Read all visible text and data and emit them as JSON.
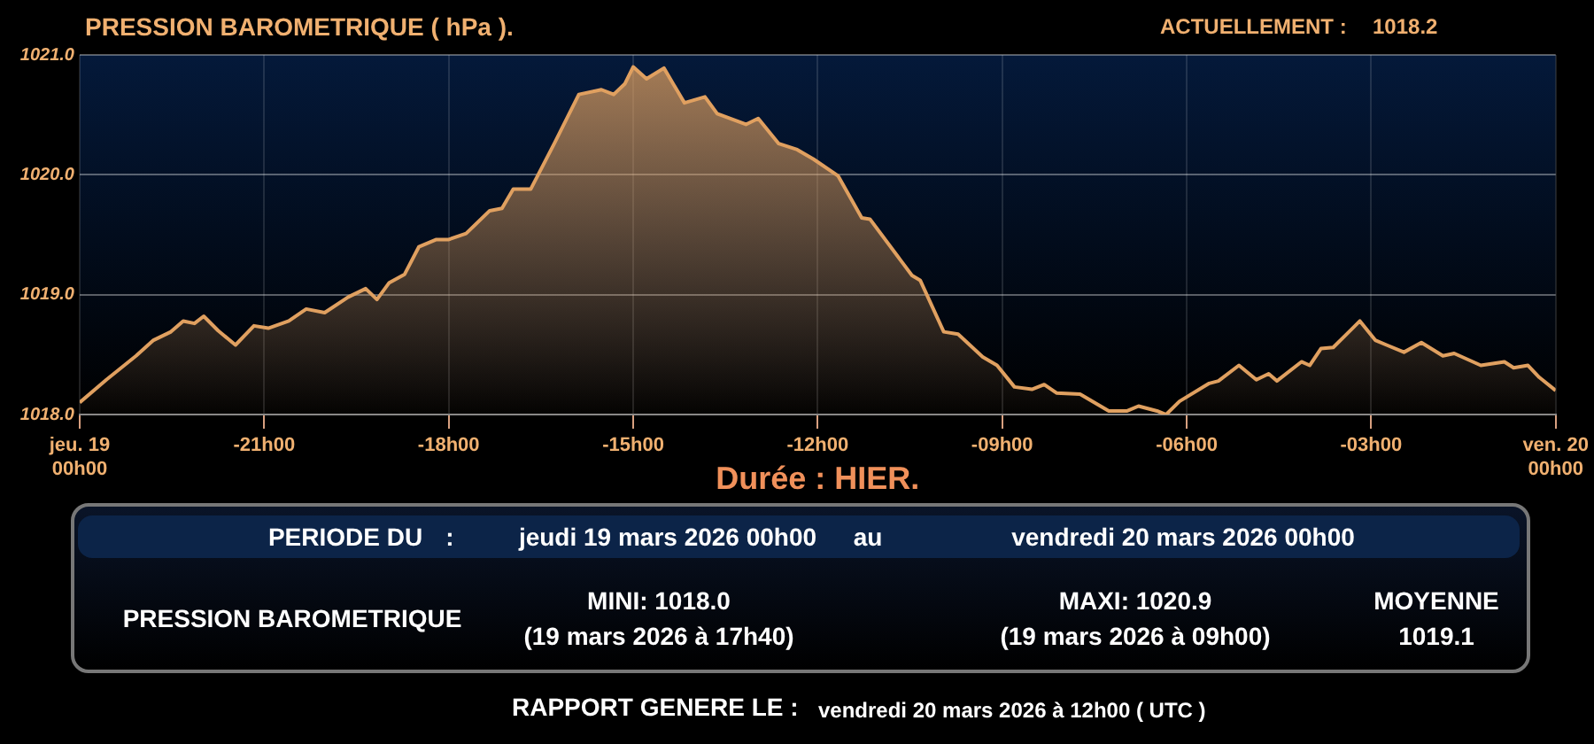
{
  "chart_data": {
    "type": "area",
    "title": "PRESSION BAROMETRIQUE ( hPa ).",
    "xlabel": "Durée : HIER.",
    "annotations": [
      "ACTUELLEMENT :",
      "1018.2",
      "PERIODE DU",
      ":",
      "jeudi 19 mars 2026 00h00",
      "au",
      "vendredi 20 mars 2026 00h00",
      "PRESSION BAROMETRIQUE",
      "MINI:  1018.0",
      "(19 mars 2026 à 17h40)",
      "MAXI:  1020.9",
      "(19 mars 2026 à 09h00)",
      "MOYENNE",
      "1019.1",
      "RAPPORT GENERE LE :",
      "vendredi 20 mars 2026 à 12h00 ( UTC )"
    ],
    "xlim": [
      "2026-03-19T00:00",
      "2026-03-20T00:00"
    ],
    "xticks": [
      {
        "value": "2026-03-19T00:00",
        "label": "jeu. 19\n00h00"
      },
      {
        "value": "2026-03-19T03:00",
        "label": "-21h00"
      },
      {
        "value": "2026-03-19T06:00",
        "label": "-18h00"
      },
      {
        "value": "2026-03-19T09:00",
        "label": "-15h00"
      },
      {
        "value": "2026-03-19T12:00",
        "label": "-12h00"
      },
      {
        "value": "2026-03-19T15:00",
        "label": "-09h00"
      },
      {
        "value": "2026-03-19T18:00",
        "label": "-06h00"
      },
      {
        "value": "2026-03-19T21:00",
        "label": "-03h00"
      },
      {
        "value": "2026-03-20T00:00",
        "label": "ven. 20\n00h00"
      }
    ],
    "ylim": [
      1018,
      1021
    ],
    "yticks": [
      {
        "value": 1018,
        "label": "1018.0"
      },
      {
        "value": 1019,
        "label": "1019.0"
      },
      {
        "value": 1020,
        "label": "1020.0"
      },
      {
        "value": 1021,
        "label": "1021.0"
      }
    ],
    "grid": true,
    "marker": "none",
    "line_style": "solid",
    "series": [
      {
        "color": "#e0a060",
        "x": [
          "2026-03-19T00:00",
          "2026-03-19T00:26",
          "2026-03-19T00:55",
          "2026-03-19T01:12",
          "2026-03-19T01:29",
          "2026-03-19T01:41",
          "2026-03-19T01:52",
          "2026-03-19T02:01",
          "2026-03-19T02:15",
          "2026-03-19T02:32",
          "2026-03-19T02:50",
          "2026-03-19T03:04",
          "2026-03-19T03:24",
          "2026-03-19T03:41",
          "2026-03-19T03:59",
          "2026-03-19T04:22",
          "2026-03-19T04:39",
          "2026-03-19T04:50",
          "2026-03-19T05:02",
          "2026-03-19T05:17",
          "2026-03-19T05:31",
          "2026-03-19T05:48",
          "2026-03-19T06:00",
          "2026-03-19T06:17",
          "2026-03-19T06:40",
          "2026-03-19T06:52",
          "2026-03-19T07:03",
          "2026-03-19T07:20",
          "2026-03-19T07:43",
          "2026-03-19T08:07",
          "2026-03-19T08:29",
          "2026-03-19T08:41",
          "2026-03-19T08:52",
          "2026-03-19T09:00",
          "2026-03-19T09:13",
          "2026-03-19T09:30",
          "2026-03-19T09:50",
          "2026-03-19T10:10",
          "2026-03-19T10:22",
          "2026-03-19T10:50",
          "2026-03-19T11:02",
          "2026-03-19T11:22",
          "2026-03-19T11:40",
          "2026-03-19T11:56",
          "2026-03-19T12:20",
          "2026-03-19T12:43",
          "2026-03-19T12:51",
          "2026-03-19T13:32",
          "2026-03-19T13:40",
          "2026-03-19T14:03",
          "2026-03-19T14:17",
          "2026-03-19T14:41",
          "2026-03-19T14:55",
          "2026-03-19T15:12",
          "2026-03-19T15:29",
          "2026-03-19T15:41",
          "2026-03-19T15:53",
          "2026-03-19T16:16",
          "2026-03-19T16:44",
          "2026-03-19T17:02",
          "2026-03-19T17:13",
          "2026-03-19T17:31",
          "2026-03-19T17:40",
          "2026-03-19T17:53",
          "2026-03-19T18:22",
          "2026-03-19T18:31",
          "2026-03-19T18:51",
          "2026-03-19T19:08",
          "2026-03-19T19:20",
          "2026-03-19T19:28",
          "2026-03-19T19:52",
          "2026-03-19T20:00",
          "2026-03-19T20:11",
          "2026-03-19T20:23",
          "2026-03-19T20:49",
          "2026-03-19T21:04",
          "2026-03-19T21:15",
          "2026-03-19T21:32",
          "2026-03-19T21:49",
          "2026-03-19T22:10",
          "2026-03-19T22:21",
          "2026-03-19T22:47",
          "2026-03-19T23:10",
          "2026-03-19T23:19",
          "2026-03-19T23:33",
          "2026-03-19T23:44",
          "2026-03-20T00:00"
        ],
        "values": [
          1018.1,
          1018.29,
          1018.49,
          1018.62,
          1018.69,
          1018.78,
          1018.76,
          1018.82,
          1018.7,
          1018.58,
          1018.74,
          1018.72,
          1018.78,
          1018.88,
          1018.85,
          1018.98,
          1019.05,
          1018.96,
          1019.1,
          1019.17,
          1019.4,
          1019.46,
          1019.46,
          1019.51,
          1019.7,
          1019.72,
          1019.88,
          1019.88,
          1020.26,
          1020.67,
          1020.71,
          1020.67,
          1020.76,
          1020.9,
          1020.8,
          1020.89,
          1020.6,
          1020.65,
          1020.51,
          1020.42,
          1020.47,
          1020.26,
          1020.21,
          1020.13,
          1019.99,
          1019.64,
          1019.63,
          1019.16,
          1019.12,
          1018.69,
          1018.67,
          1018.48,
          1018.41,
          1018.23,
          1018.21,
          1018.25,
          1018.18,
          1018.17,
          1018.03,
          1018.03,
          1018.07,
          1018.03,
          1018,
          1018.11,
          1018.26,
          1018.28,
          1018.41,
          1018.29,
          1018.34,
          1018.28,
          1018.44,
          1018.41,
          1018.55,
          1018.56,
          1018.78,
          1018.62,
          1018.58,
          1018.52,
          1018.6,
          1018.49,
          1018.51,
          1018.41,
          1018.44,
          1018.39,
          1018.41,
          1018.31,
          1018.2
        ]
      }
    ]
  }
}
